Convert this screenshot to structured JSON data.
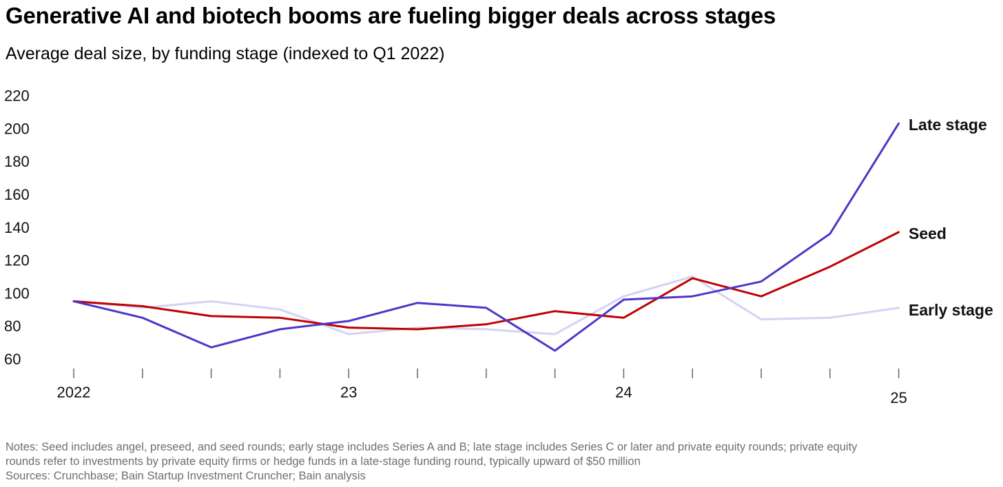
{
  "title": "Generative AI and biotech booms are fueling bigger deals across stages",
  "subtitle": "Average deal size, by funding stage (indexed to Q1 2022)",
  "notes": {
    "line1": "Notes: Seed includes angel, preseed, and seed rounds; early stage includes Series A and B; late stage includes Series C or later and private equity rounds; private equity",
    "line2": "rounds refer to investments by private equity firms or hedge funds in a late-stage funding round, typically upward of $50 million",
    "sources": "Sources: Crunchbase; Bain Startup Investment Cruncher; Bain analysis"
  },
  "chart_data": {
    "type": "line",
    "x": [
      "Q1 2022",
      "Q2 2022",
      "Q3 2022",
      "Q4 2022",
      "Q1 2023",
      "Q2 2023",
      "Q3 2023",
      "Q4 2023",
      "Q1 2024",
      "Q2 2024",
      "Q3 2024",
      "Q4 2024",
      "Q1 2025"
    ],
    "xtick_labels": [
      "2022",
      "",
      "",
      "",
      "23",
      "",
      "",
      "",
      "24",
      "",
      "",
      "",
      "25"
    ],
    "yticks": [
      60,
      80,
      100,
      120,
      140,
      160,
      180,
      200,
      220
    ],
    "ylim": [
      60,
      220
    ],
    "grid": false,
    "legend": "direct labels at right end of lines",
    "series": [
      {
        "name": "Early stage",
        "color": "#d4d2f4",
        "values": [
          95,
          91,
          95,
          90,
          75,
          79,
          78,
          75,
          98,
          110,
          84,
          85,
          91
        ]
      },
      {
        "name": "Seed",
        "color": "#c00000",
        "values": [
          95,
          92,
          86,
          85,
          79,
          78,
          81,
          89,
          85,
          109,
          98,
          116,
          137
        ]
      },
      {
        "name": "Late stage",
        "color": "#4f35c8",
        "values": [
          95,
          85,
          67,
          78,
          83,
          94,
          91,
          65,
          96,
          98,
          107,
          136,
          203
        ]
      }
    ]
  }
}
